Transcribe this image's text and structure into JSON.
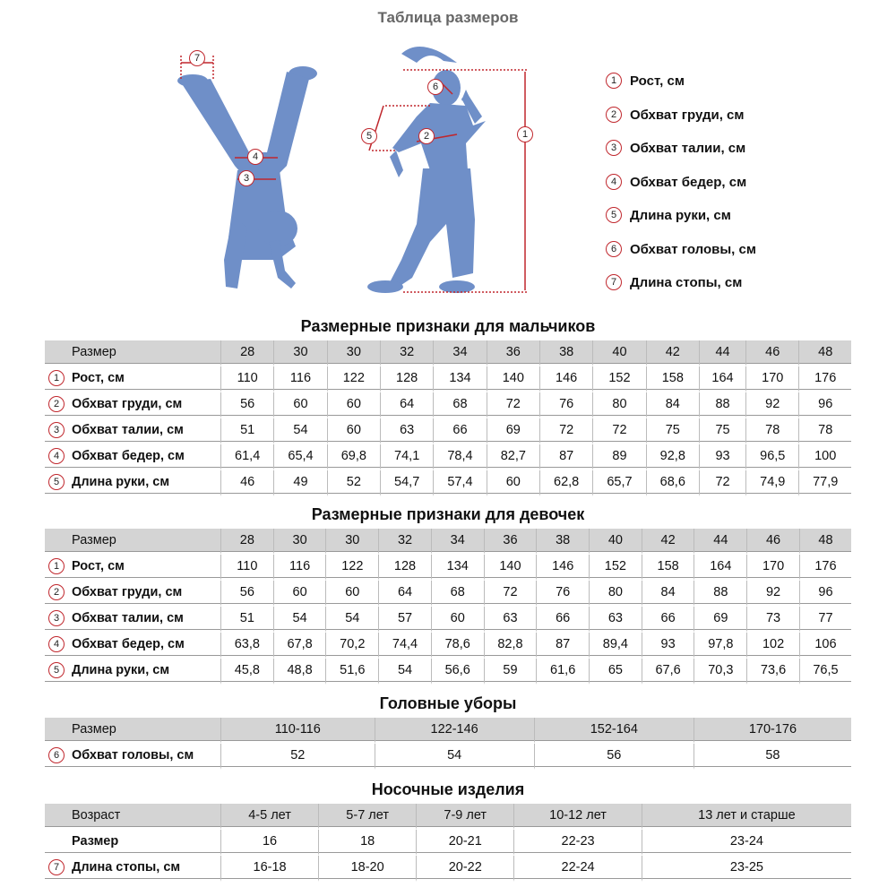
{
  "title": "Таблица размеров",
  "colors": {
    "figure": "#6f8fc8",
    "accent": "#c0272d",
    "header_bg": "#d4d4d4"
  },
  "legend": [
    {
      "n": "1",
      "label": "Рост, см"
    },
    {
      "n": "2",
      "label": "Обхват груди, см"
    },
    {
      "n": "3",
      "label": "Обхват талии, см"
    },
    {
      "n": "4",
      "label": "Обхват бедер, см"
    },
    {
      "n": "5",
      "label": "Длина руки, см"
    },
    {
      "n": "6",
      "label": "Обхват головы, см"
    },
    {
      "n": "7",
      "label": "Длина стопы, см"
    }
  ],
  "boys": {
    "title": "Размерные признаки для мальчиков",
    "header": {
      "label": "Размер",
      "values": [
        "28",
        "30",
        "30",
        "32",
        "34",
        "36",
        "38",
        "40",
        "42",
        "44",
        "46",
        "48"
      ]
    },
    "rows": [
      {
        "n": "1",
        "label": "Рост, см",
        "values": [
          "110",
          "116",
          "122",
          "128",
          "134",
          "140",
          "146",
          "152",
          "158",
          "164",
          "170",
          "176"
        ]
      },
      {
        "n": "2",
        "label": "Обхват груди, см",
        "values": [
          "56",
          "60",
          "60",
          "64",
          "68",
          "72",
          "76",
          "80",
          "84",
          "88",
          "92",
          "96"
        ]
      },
      {
        "n": "3",
        "label": "Обхват талии, см",
        "values": [
          "51",
          "54",
          "60",
          "63",
          "66",
          "69",
          "72",
          "72",
          "75",
          "75",
          "78",
          "78"
        ]
      },
      {
        "n": "4",
        "label": "Обхват бедер, см",
        "values": [
          "61,4",
          "65,4",
          "69,8",
          "74,1",
          "78,4",
          "82,7",
          "87",
          "89",
          "92,8",
          "93",
          "96,5",
          "100"
        ]
      },
      {
        "n": "5",
        "label": "Длина руки, см",
        "values": [
          "46",
          "49",
          "52",
          "54,7",
          "57,4",
          "60",
          "62,8",
          "65,7",
          "68,6",
          "72",
          "74,9",
          "77,9"
        ]
      }
    ]
  },
  "girls": {
    "title": "Размерные признаки для девочек",
    "header": {
      "label": "Размер",
      "values": [
        "28",
        "30",
        "30",
        "32",
        "34",
        "36",
        "38",
        "40",
        "42",
        "44",
        "46",
        "48"
      ]
    },
    "rows": [
      {
        "n": "1",
        "label": "Рост, см",
        "values": [
          "110",
          "116",
          "122",
          "128",
          "134",
          "140",
          "146",
          "152",
          "158",
          "164",
          "170",
          "176"
        ]
      },
      {
        "n": "2",
        "label": "Обхват груди, см",
        "values": [
          "56",
          "60",
          "60",
          "64",
          "68",
          "72",
          "76",
          "80",
          "84",
          "88",
          "92",
          "96"
        ]
      },
      {
        "n": "3",
        "label": "Обхват талии, см",
        "values": [
          "51",
          "54",
          "54",
          "57",
          "60",
          "63",
          "66",
          "63",
          "66",
          "69",
          "73",
          "77"
        ]
      },
      {
        "n": "4",
        "label": "Обхват бедер, см",
        "values": [
          "63,8",
          "67,8",
          "70,2",
          "74,4",
          "78,6",
          "82,8",
          "87",
          "89,4",
          "93",
          "97,8",
          "102",
          "106"
        ]
      },
      {
        "n": "5",
        "label": "Длина руки, см",
        "values": [
          "45,8",
          "48,8",
          "51,6",
          "54",
          "56,6",
          "59",
          "61,6",
          "65",
          "67,6",
          "70,3",
          "73,6",
          "76,5"
        ]
      }
    ]
  },
  "hats": {
    "title": "Головные уборы",
    "header": {
      "label": "Размер",
      "values": [
        "110-116",
        "122-146",
        "152-164",
        "170-176"
      ]
    },
    "rows": [
      {
        "n": "6",
        "label": "Обхват головы, см",
        "values": [
          "52",
          "54",
          "56",
          "58"
        ]
      }
    ]
  },
  "socks": {
    "title": "Носочные изделия",
    "header": {
      "label": "Возраст",
      "values": [
        "4-5 лет",
        "5-7 лет",
        "7-9 лет",
        "10-12 лет",
        "13 лет и старше"
      ]
    },
    "rows": [
      {
        "n": "",
        "label": "Размер",
        "values": [
          "16",
          "18",
          "20-21",
          "22-23",
          "23-24"
        ]
      },
      {
        "n": "7",
        "label": "Длина стопы, см",
        "values": [
          "16-18",
          "18-20",
          "20-22",
          "22-24",
          "23-25"
        ]
      }
    ]
  }
}
